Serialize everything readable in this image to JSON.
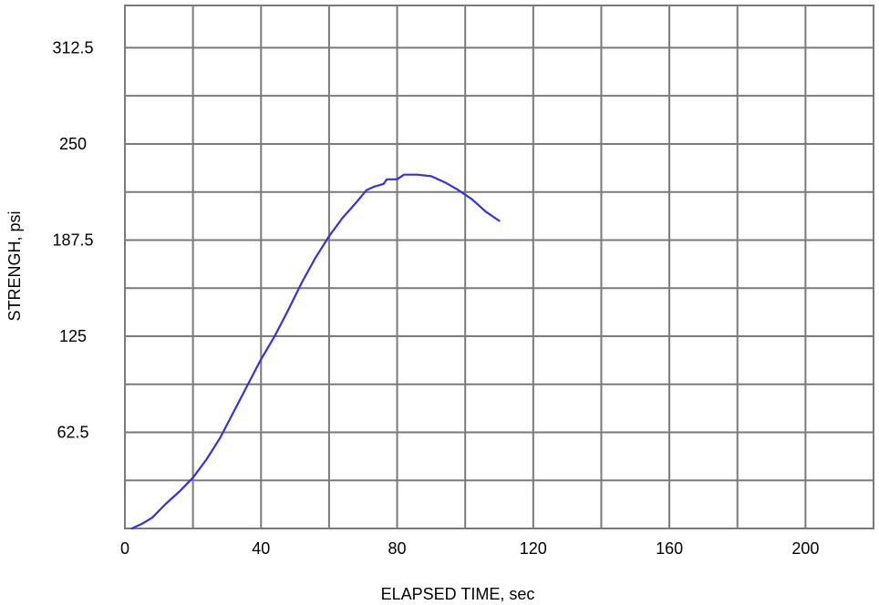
{
  "chart_data": {
    "type": "line",
    "title": "",
    "xlabel": "ELAPSED TIME, sec",
    "ylabel": "STRENGH, psi",
    "xlim": [
      0,
      220
    ],
    "ylim": [
      0,
      340
    ],
    "x_ticks": [
      0,
      40,
      80,
      120,
      160,
      200
    ],
    "x_tick_labels": [
      "0",
      "40",
      "80",
      "120",
      "160",
      "200"
    ],
    "y_ticks": [
      62.5,
      125,
      187.5,
      250,
      312.5
    ],
    "y_tick_labels": [
      "62.5",
      "125",
      "187.5",
      "250",
      "312.5"
    ],
    "x_gridlines": [
      0,
      20,
      40,
      60,
      80,
      100,
      120,
      140,
      160,
      180,
      200,
      220
    ],
    "y_gridlines": [
      0,
      31.25,
      62.5,
      93.75,
      125,
      156.25,
      187.5,
      218.75,
      250,
      281.25,
      312.5,
      343.75
    ],
    "grid": true,
    "grid_color": "#7a7a7a",
    "line_color": "#3333dd",
    "series": [
      {
        "x": [
          2,
          5,
          8,
          12,
          16,
          20,
          24,
          28,
          32,
          36,
          40,
          44,
          48,
          52,
          56,
          60,
          64,
          68,
          71,
          73,
          76,
          77,
          80,
          82,
          86,
          90,
          94,
          98,
          102,
          106,
          110
        ],
        "y": [
          0,
          3,
          7,
          16,
          24,
          33,
          45,
          59,
          76,
          93,
          110,
          125,
          142,
          160,
          176,
          190,
          202,
          212,
          220,
          222,
          224,
          227,
          227,
          230,
          230,
          229,
          225,
          220,
          214,
          206,
          200
        ]
      }
    ]
  }
}
